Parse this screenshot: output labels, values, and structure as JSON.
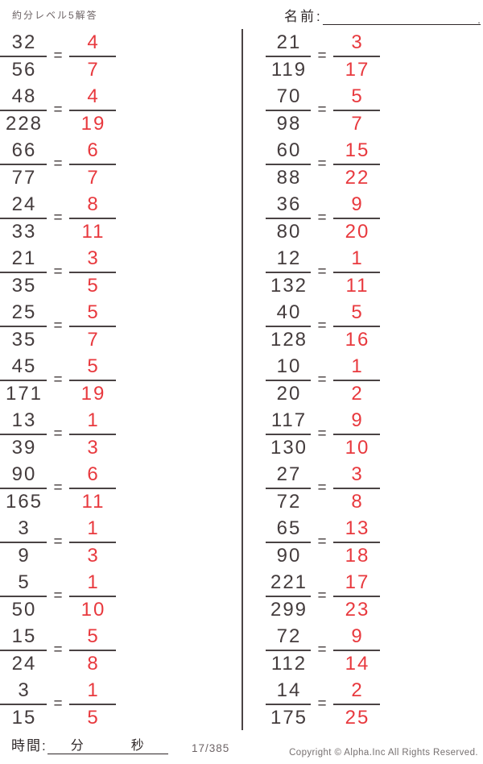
{
  "page": {
    "title": "約分レベル5解答",
    "name_label": "名前:",
    "name_line_period": ".",
    "equals_sign": "=",
    "footer": {
      "time_label": "時間:",
      "minutes_label": "分",
      "seconds_label": "秒",
      "page_indicator": "17/385",
      "copyright": "Copyright ©  Alpha.Inc All Rights Reserved."
    },
    "colors": {
      "ink": "#443c3d",
      "answer_red": "#e8393e",
      "bar": "#4a4344",
      "muted": "#6d6466"
    }
  },
  "problems": {
    "left": [
      {
        "num": "32",
        "den": "56",
        "ans_num": "4",
        "ans_den": "7"
      },
      {
        "num": "48",
        "den": "228",
        "ans_num": "4",
        "ans_den": "19"
      },
      {
        "num": "66",
        "den": "77",
        "ans_num": "6",
        "ans_den": "7"
      },
      {
        "num": "24",
        "den": "33",
        "ans_num": "8",
        "ans_den": "11"
      },
      {
        "num": "21",
        "den": "35",
        "ans_num": "3",
        "ans_den": "5"
      },
      {
        "num": "25",
        "den": "35",
        "ans_num": "5",
        "ans_den": "7"
      },
      {
        "num": "45",
        "den": "171",
        "ans_num": "5",
        "ans_den": "19"
      },
      {
        "num": "13",
        "den": "39",
        "ans_num": "1",
        "ans_den": "3"
      },
      {
        "num": "90",
        "den": "165",
        "ans_num": "6",
        "ans_den": "11"
      },
      {
        "num": "3",
        "den": "9",
        "ans_num": "1",
        "ans_den": "3"
      },
      {
        "num": "5",
        "den": "50",
        "ans_num": "1",
        "ans_den": "10"
      },
      {
        "num": "15",
        "den": "24",
        "ans_num": "5",
        "ans_den": "8"
      },
      {
        "num": "3",
        "den": "15",
        "ans_num": "1",
        "ans_den": "5"
      }
    ],
    "right": [
      {
        "num": "21",
        "den": "119",
        "ans_num": "3",
        "ans_den": "17"
      },
      {
        "num": "70",
        "den": "98",
        "ans_num": "5",
        "ans_den": "7"
      },
      {
        "num": "60",
        "den": "88",
        "ans_num": "15",
        "ans_den": "22"
      },
      {
        "num": "36",
        "den": "80",
        "ans_num": "9",
        "ans_den": "20"
      },
      {
        "num": "12",
        "den": "132",
        "ans_num": "1",
        "ans_den": "11"
      },
      {
        "num": "40",
        "den": "128",
        "ans_num": "5",
        "ans_den": "16"
      },
      {
        "num": "10",
        "den": "20",
        "ans_num": "1",
        "ans_den": "2"
      },
      {
        "num": "117",
        "den": "130",
        "ans_num": "9",
        "ans_den": "10"
      },
      {
        "num": "27",
        "den": "72",
        "ans_num": "3",
        "ans_den": "8"
      },
      {
        "num": "65",
        "den": "90",
        "ans_num": "13",
        "ans_den": "18"
      },
      {
        "num": "221",
        "den": "299",
        "ans_num": "17",
        "ans_den": "23"
      },
      {
        "num": "72",
        "den": "112",
        "ans_num": "9",
        "ans_den": "14"
      },
      {
        "num": "14",
        "den": "175",
        "ans_num": "2",
        "ans_den": "25"
      }
    ]
  }
}
